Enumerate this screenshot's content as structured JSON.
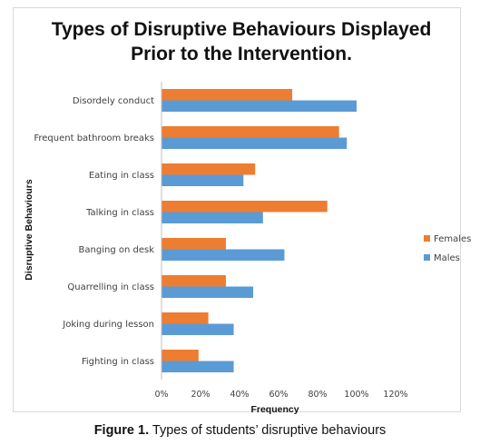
{
  "chart_data": {
    "type": "bar",
    "orientation": "horizontal",
    "title_lines": [
      "Types of Disruptive Behaviours Displayed",
      "Prior to the Intervention."
    ],
    "xlabel": "Frequency",
    "ylabel": "Disruptive Behaviours",
    "categories": [
      "Disordely conduct",
      "Frequent bathroom breaks",
      "Eating in class",
      "Talking in class",
      "Banging on desk",
      "Quarrelling in class",
      "Joking during lesson",
      "Fighting in class"
    ],
    "series": [
      {
        "name": "Females",
        "color": "#ED7D31",
        "values": [
          67,
          91,
          48,
          85,
          33,
          33,
          24,
          19
        ]
      },
      {
        "name": "Males",
        "color": "#5B9BD5",
        "values": [
          100,
          95,
          42,
          52,
          63,
          47,
          37,
          37
        ]
      }
    ],
    "xlim": [
      0,
      120
    ],
    "xticks": [
      "0%",
      "20%",
      "40%",
      "60%",
      "80%",
      "100%",
      "120%"
    ],
    "legend_position": "right",
    "grid": false
  },
  "caption": {
    "label": "Figure 1.",
    "text": "Types of students’ disruptive behaviours"
  }
}
